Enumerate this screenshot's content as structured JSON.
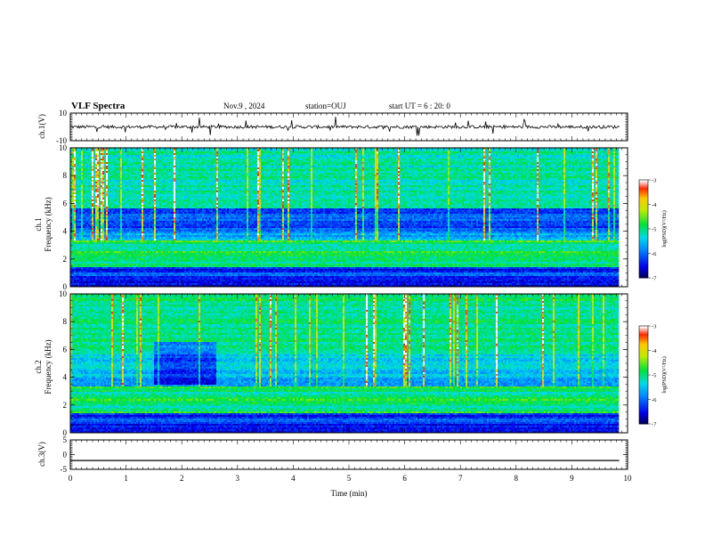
{
  "header": {
    "title": "VLF Spectra",
    "date": "Nov.9 , 2024",
    "station": "station=OUJ",
    "start": "start UT = 6 : 20: 0"
  },
  "chart_data": [
    {
      "type": "line",
      "panel": "ch1-waveform",
      "ylabel": "ch.1(V)",
      "ylim": [
        -10,
        10
      ],
      "yticks": [
        "10",
        "-10"
      ],
      "xlim": [
        0,
        10
      ],
      "baseline": 0,
      "color": "#000000"
    },
    {
      "type": "heatmap",
      "panel": "ch1-spectrogram",
      "ylabel": "ch.1 Frequency (kHz)",
      "ylabel_line1": "ch.1",
      "ylabel_line2": "Frequency (kHz)",
      "ylim": [
        0,
        10
      ],
      "yticks": [
        "0",
        "2",
        "4",
        "6",
        "8",
        "10"
      ],
      "xlim": [
        0,
        9.85
      ],
      "colorscale": "rainbow",
      "colorbar": {
        "label": "log(PSD)(V²/Hz)",
        "range": [
          -7,
          -3
        ],
        "ticks": [
          "-3",
          "-4",
          "-5",
          "-6",
          "-7"
        ]
      }
    },
    {
      "type": "heatmap",
      "panel": "ch2-spectrogram",
      "ylabel": "ch.2 Frequency (kHz)",
      "ylabel_line1": "ch.2",
      "ylabel_line2": "Frequency (kHz)",
      "ylim": [
        0,
        10
      ],
      "yticks": [
        "0",
        "2",
        "4",
        "6",
        "8",
        "10"
      ],
      "xlim": [
        0,
        9.85
      ],
      "colorscale": "rainbow",
      "colorbar": {
        "label": "log(PSD)(V²/Hz)",
        "range": [
          -7,
          -3
        ],
        "ticks": [
          "-3",
          "-4",
          "-5",
          "-6",
          "-7"
        ]
      }
    },
    {
      "type": "line",
      "panel": "ch3-waveform",
      "ylabel": "ch.3(V)",
      "ylim": [
        -5,
        5
      ],
      "yticks": [
        "5",
        "0",
        "-5"
      ],
      "xlim": [
        0,
        10
      ],
      "baseline": -2,
      "color": "#000000"
    }
  ],
  "xaxis": {
    "label": "Time (min)",
    "ticks": [
      "0",
      "1",
      "2",
      "3",
      "4",
      "5",
      "6",
      "7",
      "8",
      "9",
      "10"
    ]
  },
  "colors": {
    "low": "#00005a",
    "blue": "#0000ff",
    "cyan": "#00c8ff",
    "green": "#00e600",
    "yellow": "#ffe600",
    "red": "#ff0000",
    "high": "#ffffff"
  }
}
